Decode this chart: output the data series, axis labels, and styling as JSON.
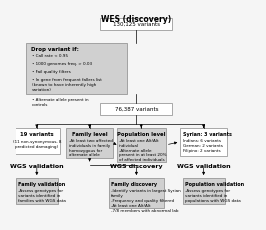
{
  "title": "WES (discovery)",
  "bg_color": "#f5f5f5",
  "box_variants_top": "130,125 variants",
  "box_filter_title": "Drop variant if:",
  "box_filter_bullets": [
    "Call rate < 0.95",
    "1000 genomes freq. > 0.03",
    "Fail quality filters",
    "In gene from frequent fallers list\n(known to have inherently high\nvariation)",
    "Alternate allele present in\ncontrols"
  ],
  "box_variants_mid": "76,387 variants",
  "box_iv_title": "19 variants",
  "box_iv_body": "(11 non-synonymous, 8\npredicted damaging)",
  "box_family_title": "Family level",
  "box_family_body": "-At least two affected\nindividuals in family\nhomozygous for\nalternate allele",
  "box_pop_title": "Population level",
  "box_pop_body": "-At least one Alt/Alt\nindividual\n-Alternate allele\npresent in at least 20%\nof affected individuals",
  "box_syr_title": "Syrian: 3 variants",
  "box_syr_body": "Indians: 6 variants\nGerman: 2 variants\nFilipino: 2 variants",
  "label_wgs_val_left": "WGS validation",
  "label_wgs_disc": "WGS discovery",
  "label_wgs_val_right": "WGS validation",
  "box_fam_val_title": "Family validation",
  "box_fam_val_body": "-Assess genotypes for\nvariants identified in\nfamilies with WGS data",
  "box_fam_disc_title": "Family discovery",
  "box_fam_disc_body": "-Identify variants in largest Syrian\nfamily\n-Frequency and quality filtered\n-At least one Alt/Alt\n-7/8 members with abnormal lab",
  "box_pop_val_title": "Population validation",
  "box_pop_val_body": "-Assess genotypes for\nvariants identified in\npopulations with WGS data",
  "gray_fill": "#d0d0d0",
  "white_fill": "#ffffff",
  "border_color": "#888888",
  "text_color": "#000000"
}
